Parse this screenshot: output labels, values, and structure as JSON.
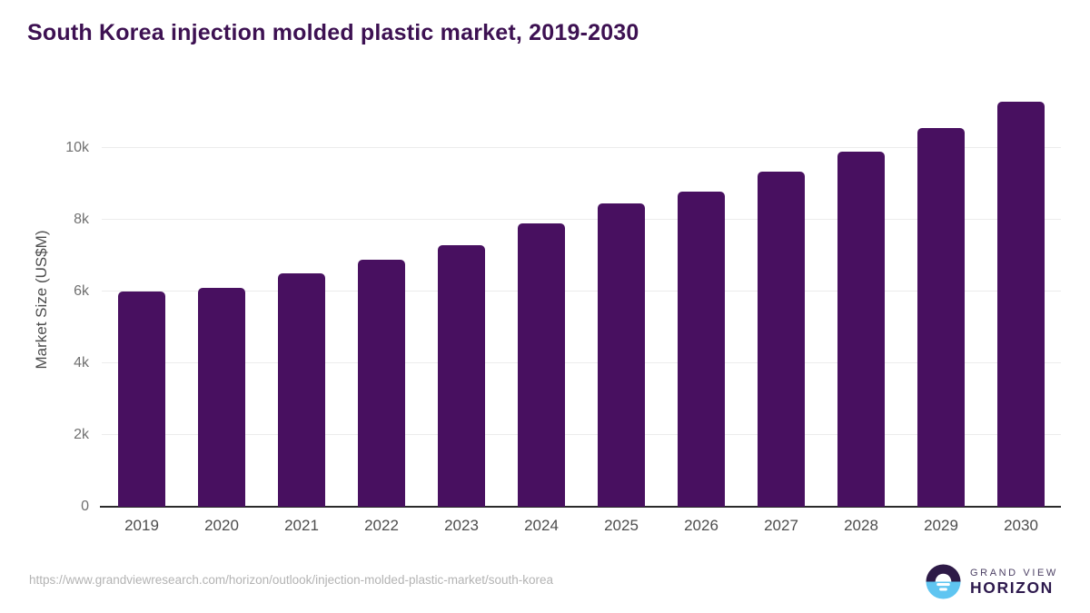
{
  "title": "South Korea injection molded plastic market, 2019-2030",
  "chart_data": {
    "type": "bar",
    "title": "South Korea injection molded plastic market, 2019-2030",
    "categories": [
      "2019",
      "2020",
      "2021",
      "2022",
      "2023",
      "2024",
      "2025",
      "2026",
      "2027",
      "2028",
      "2029",
      "2030"
    ],
    "values": [
      6000,
      6100,
      6500,
      6900,
      7300,
      7900,
      8450,
      8800,
      9350,
      9900,
      10550,
      11300
    ],
    "xlabel": "",
    "ylabel": "Market Size (US$M)",
    "ylim": [
      0,
      11600
    ],
    "yticks": [
      {
        "value": 0,
        "label": "0"
      },
      {
        "value": 2000,
        "label": "2k"
      },
      {
        "value": 4000,
        "label": "4k"
      },
      {
        "value": 6000,
        "label": "6k"
      },
      {
        "value": 8000,
        "label": "8k"
      },
      {
        "value": 10000,
        "label": "10k"
      }
    ],
    "grid": "horizontal",
    "legend": "none",
    "bar_color": "#481060"
  },
  "footer": {
    "source_url": "https://www.grandviewresearch.com/horizon/outlook/injection-molded-plastic-market/south-korea",
    "logo": {
      "line1": "GRAND VIEW",
      "line2": "HORIZON"
    }
  },
  "colors": {
    "title": "#3d1152",
    "bar": "#481060",
    "gridline": "#ececec",
    "axis_line": "#2a2a2a",
    "y_tick_text": "#707070",
    "x_tick_text": "#4c4c4c",
    "url_text": "#b3b3b3",
    "logo_navy": "#2e1a47",
    "logo_blue": "#5fc5f1"
  }
}
